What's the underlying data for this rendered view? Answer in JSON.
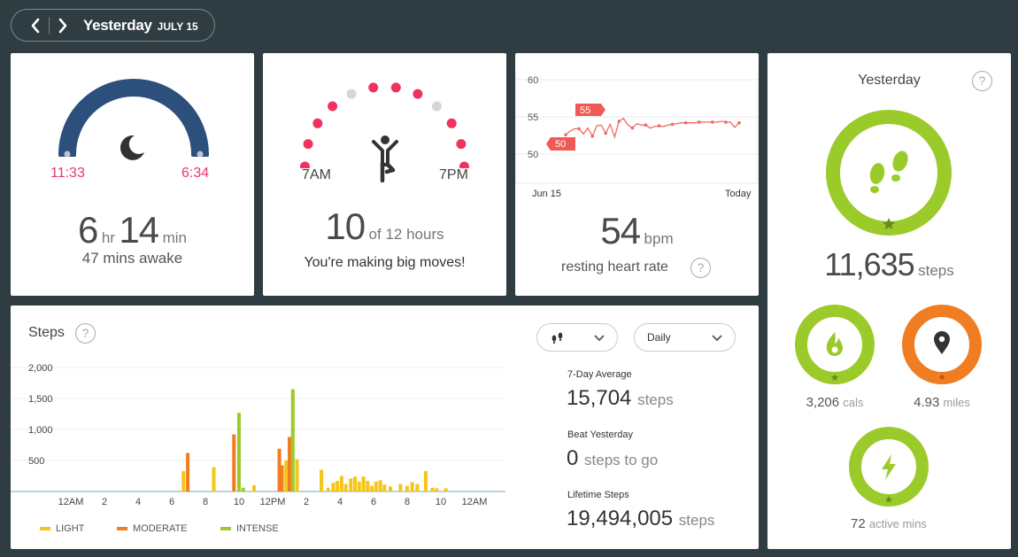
{
  "header": {
    "title": "Yesterday",
    "date": "JULY 15"
  },
  "sleep": {
    "start": "11:33",
    "end": "6:34",
    "hours": "6",
    "hr_unit": "hr",
    "minutes": "14",
    "min_unit": "min",
    "awake": "47 mins awake"
  },
  "hourly": {
    "start_label": "7AM",
    "end_label": "7PM",
    "count": "10",
    "of_label": "of 12 hours",
    "message": "You're making big moves!",
    "hours_active": [
      true,
      true,
      true,
      true,
      false,
      true,
      true,
      true,
      false,
      true,
      true,
      true
    ]
  },
  "heart": {
    "y_ticks": [
      "60",
      "55",
      "50"
    ],
    "x_start": "Jun 15",
    "x_end": "Today",
    "badge_high": "55",
    "badge_low": "50",
    "value": "54",
    "unit": "bpm",
    "label": "resting heart rate",
    "series": [
      52.6,
      53.1,
      53.4,
      53.4,
      52.7,
      53.5,
      52.4,
      53.8,
      53.9,
      52.8,
      54.0,
      52.3,
      54.4,
      54.8,
      53.9,
      53.5,
      54.1,
      53.9,
      53.9,
      53.5,
      53.7,
      53.8,
      53.7,
      53.9,
      54.0,
      54.1,
      54.2,
      54.2,
      54.2,
      54.2,
      54.3,
      54.3,
      54.3,
      54.3,
      54.3,
      54.4,
      54.3,
      54.3,
      53.6,
      54.2
    ],
    "color": "#f06a60"
  },
  "steps_card": {
    "title": "Steps",
    "dropdown_icon_label": "steps",
    "dropdown_period": "Daily",
    "stats": [
      {
        "label": "7-Day Average",
        "value": "15,704",
        "unit": "steps"
      },
      {
        "label": "Beat Yesterday",
        "value": "0",
        "unit": "steps to go"
      },
      {
        "label": "Lifetime Steps",
        "value": "19,494,005",
        "unit": "steps"
      }
    ],
    "legend": [
      {
        "name": "LIGHT",
        "color": "#f5c518"
      },
      {
        "name": "MODERATE",
        "color": "#f07d22"
      },
      {
        "name": "INTENSE",
        "color": "#9bcb2b"
      }
    ]
  },
  "chart_data": {
    "type": "bar",
    "title": "Steps",
    "ylim": [
      0,
      2000
    ],
    "y_ticks": [
      "2,000",
      "1,500",
      "1,000",
      "500"
    ],
    "x_ticks": [
      "12AM",
      "2",
      "4",
      "6",
      "8",
      "10",
      "12PM",
      "2",
      "4",
      "6",
      "8",
      "10",
      "12AM"
    ],
    "bars": [
      {
        "hour": 6.7,
        "value": 330,
        "type": "light"
      },
      {
        "hour": 6.95,
        "value": 620,
        "type": "moderate"
      },
      {
        "hour": 8.5,
        "value": 390,
        "type": "light"
      },
      {
        "hour": 9.7,
        "value": 920,
        "type": "moderate"
      },
      {
        "hour": 10.0,
        "value": 1270,
        "type": "intense"
      },
      {
        "hour": 10.25,
        "value": 60,
        "type": "intense"
      },
      {
        "hour": 10.9,
        "value": 100,
        "type": "light"
      },
      {
        "hour": 12.4,
        "value": 690,
        "type": "moderate"
      },
      {
        "hour": 12.55,
        "value": 420,
        "type": "moderate"
      },
      {
        "hour": 12.8,
        "value": 500,
        "type": "light"
      },
      {
        "hour": 13.0,
        "value": 880,
        "type": "moderate"
      },
      {
        "hour": 13.2,
        "value": 1650,
        "type": "intense"
      },
      {
        "hour": 13.45,
        "value": 520,
        "type": "light"
      },
      {
        "hour": 14.9,
        "value": 350,
        "type": "light"
      },
      {
        "hour": 15.3,
        "value": 60,
        "type": "light"
      },
      {
        "hour": 15.6,
        "value": 140,
        "type": "light"
      },
      {
        "hour": 15.85,
        "value": 170,
        "type": "light"
      },
      {
        "hour": 16.1,
        "value": 250,
        "type": "light"
      },
      {
        "hour": 16.35,
        "value": 120,
        "type": "light"
      },
      {
        "hour": 16.65,
        "value": 210,
        "type": "light"
      },
      {
        "hour": 16.9,
        "value": 240,
        "type": "light"
      },
      {
        "hour": 17.15,
        "value": 160,
        "type": "light"
      },
      {
        "hour": 17.4,
        "value": 240,
        "type": "light"
      },
      {
        "hour": 17.65,
        "value": 170,
        "type": "light"
      },
      {
        "hour": 17.9,
        "value": 90,
        "type": "light"
      },
      {
        "hour": 18.15,
        "value": 160,
        "type": "light"
      },
      {
        "hour": 18.4,
        "value": 180,
        "type": "light"
      },
      {
        "hour": 18.65,
        "value": 110,
        "type": "light"
      },
      {
        "hour": 19.0,
        "value": 80,
        "type": "light"
      },
      {
        "hour": 19.6,
        "value": 120,
        "type": "light"
      },
      {
        "hour": 20.0,
        "value": 90,
        "type": "light"
      },
      {
        "hour": 20.3,
        "value": 150,
        "type": "light"
      },
      {
        "hour": 20.6,
        "value": 120,
        "type": "light"
      },
      {
        "hour": 21.1,
        "value": 330,
        "type": "light"
      },
      {
        "hour": 21.5,
        "value": 60,
        "type": "light"
      },
      {
        "hour": 21.75,
        "value": 50,
        "type": "light"
      },
      {
        "hour": 22.3,
        "value": 50,
        "type": "light"
      }
    ],
    "colors": {
      "light": "#f5c518",
      "moderate": "#f07d22",
      "intense": "#9bcb2b"
    }
  },
  "yesterday": {
    "title": "Yesterday",
    "steps": {
      "value": "11,635",
      "unit": "steps",
      "color": "#9bcb2b"
    },
    "cals": {
      "value": "3,206",
      "unit": "cals",
      "color": "#9bcb2b"
    },
    "miles": {
      "value": "4.93",
      "unit": "miles",
      "color": "#f07d22"
    },
    "active": {
      "value": "72",
      "unit": "active mins",
      "color": "#9bcb2b"
    }
  }
}
